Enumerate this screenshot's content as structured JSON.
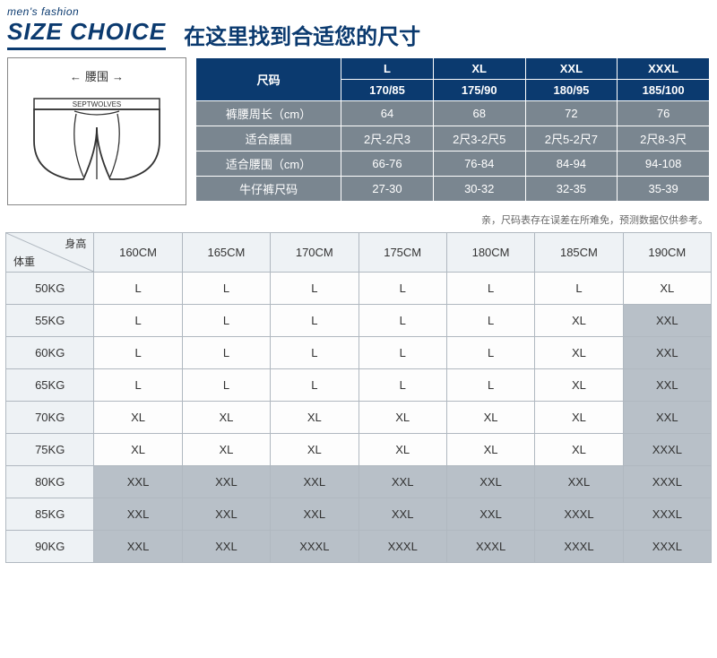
{
  "header": {
    "subtitle": "men's fashion",
    "title_en": "SIZE CHOICE",
    "title_cn": "在这里找到合适您的尺寸"
  },
  "diagram": {
    "waist_label": "腰围",
    "brand": "SEPTWOLVES"
  },
  "size_table": {
    "corner": "尺码",
    "columns": [
      {
        "size": "L",
        "spec": "170/85"
      },
      {
        "size": "XL",
        "spec": "175/90"
      },
      {
        "size": "XXL",
        "spec": "180/95"
      },
      {
        "size": "XXXL",
        "spec": "185/100"
      }
    ],
    "rows": [
      {
        "label": "裤腰周长（cm）",
        "cells": [
          "64",
          "68",
          "72",
          "76"
        ]
      },
      {
        "label": "适合腰围",
        "cells": [
          "2尺-2尺3",
          "2尺3-2尺5",
          "2尺5-2尺7",
          "2尺8-3尺"
        ]
      },
      {
        "label": "适合腰围（cm）",
        "cells": [
          "66-76",
          "76-84",
          "84-94",
          "94-108"
        ]
      },
      {
        "label": "牛仔裤尺码",
        "cells": [
          "27-30",
          "30-32",
          "32-35",
          "35-39"
        ]
      }
    ]
  },
  "note": "亲，尺码表存在误差在所难免，预测数据仅供参考。",
  "hw_table": {
    "corner_top": "身高",
    "corner_bottom": "体重",
    "heights": [
      "160CM",
      "165CM",
      "170CM",
      "175CM",
      "180CM",
      "185CM",
      "190CM"
    ],
    "weights": [
      "50KG",
      "55KG",
      "60KG",
      "65KG",
      "70KG",
      "75KG",
      "80KG",
      "85KG",
      "90KG"
    ],
    "cells": [
      [
        [
          "L",
          "a"
        ],
        [
          "L",
          "a"
        ],
        [
          "L",
          "a"
        ],
        [
          "L",
          "a"
        ],
        [
          "L",
          "a"
        ],
        [
          "L",
          "a"
        ],
        [
          "XL",
          "a"
        ]
      ],
      [
        [
          "L",
          "a"
        ],
        [
          "L",
          "a"
        ],
        [
          "L",
          "a"
        ],
        [
          "L",
          "a"
        ],
        [
          "L",
          "a"
        ],
        [
          "XL",
          "a"
        ],
        [
          "XXL",
          "b"
        ]
      ],
      [
        [
          "L",
          "a"
        ],
        [
          "L",
          "a"
        ],
        [
          "L",
          "a"
        ],
        [
          "L",
          "a"
        ],
        [
          "L",
          "a"
        ],
        [
          "XL",
          "a"
        ],
        [
          "XXL",
          "b"
        ]
      ],
      [
        [
          "L",
          "a"
        ],
        [
          "L",
          "a"
        ],
        [
          "L",
          "a"
        ],
        [
          "L",
          "a"
        ],
        [
          "L",
          "a"
        ],
        [
          "XL",
          "a"
        ],
        [
          "XXL",
          "b"
        ]
      ],
      [
        [
          "XL",
          "a"
        ],
        [
          "XL",
          "a"
        ],
        [
          "XL",
          "a"
        ],
        [
          "XL",
          "a"
        ],
        [
          "XL",
          "a"
        ],
        [
          "XL",
          "a"
        ],
        [
          "XXL",
          "b"
        ]
      ],
      [
        [
          "XL",
          "a"
        ],
        [
          "XL",
          "a"
        ],
        [
          "XL",
          "a"
        ],
        [
          "XL",
          "a"
        ],
        [
          "XL",
          "a"
        ],
        [
          "XL",
          "a"
        ],
        [
          "XXXL",
          "b"
        ]
      ],
      [
        [
          "XXL",
          "b"
        ],
        [
          "XXL",
          "b"
        ],
        [
          "XXL",
          "b"
        ],
        [
          "XXL",
          "b"
        ],
        [
          "XXL",
          "b"
        ],
        [
          "XXL",
          "b"
        ],
        [
          "XXXL",
          "b"
        ]
      ],
      [
        [
          "XXL",
          "b"
        ],
        [
          "XXL",
          "b"
        ],
        [
          "XXL",
          "b"
        ],
        [
          "XXL",
          "b"
        ],
        [
          "XXL",
          "b"
        ],
        [
          "XXXL",
          "b"
        ],
        [
          "XXXL",
          "b"
        ]
      ],
      [
        [
          "XXL",
          "b"
        ],
        [
          "XXL",
          "b"
        ],
        [
          "XXXL",
          "b"
        ],
        [
          "XXXL",
          "b"
        ],
        [
          "XXXL",
          "b"
        ],
        [
          "XXXL",
          "b"
        ],
        [
          "XXXL",
          "b"
        ]
      ]
    ]
  },
  "colors": {
    "navy": "#0b3a6f",
    "grey": "#7a8690",
    "light_header": "#eef2f5",
    "cell_light": "#fdfdfd",
    "cell_dark": "#b8c0c8",
    "border": "#b0b8c0"
  }
}
